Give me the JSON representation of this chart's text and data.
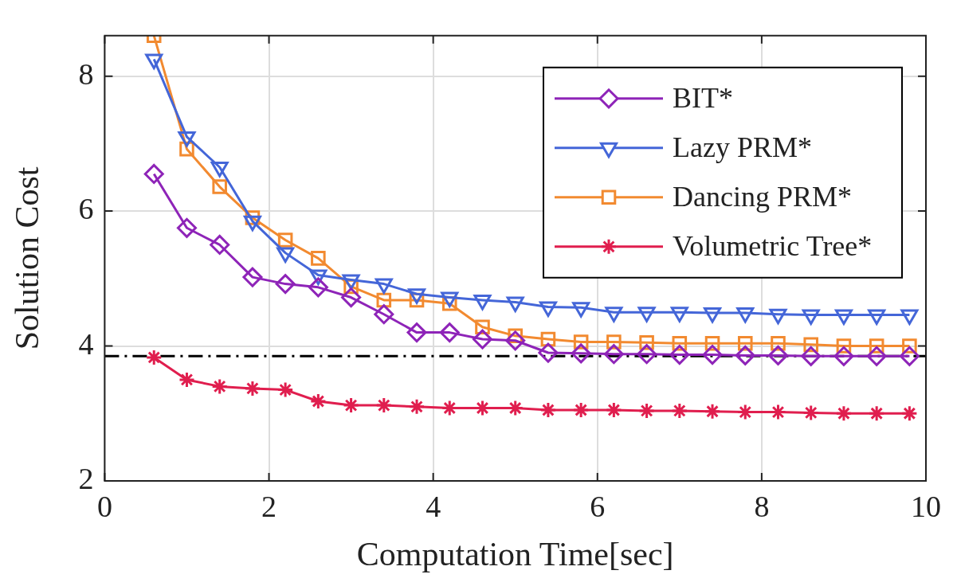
{
  "chart_data": {
    "type": "line",
    "xlabel": "Computation Time[sec]",
    "ylabel": "Solution Cost",
    "x": [
      0.6,
      1.0,
      1.4,
      1.8,
      2.2,
      2.6,
      3.0,
      3.4,
      3.8,
      4.2,
      4.6,
      5.0,
      5.4,
      5.8,
      6.2,
      6.6,
      7.0,
      7.4,
      7.8,
      8.2,
      8.6,
      9.0,
      9.4,
      9.8
    ],
    "series": [
      {
        "name": "BIT*",
        "color": "#8e24b8",
        "marker": "diamond",
        "values": [
          6.55,
          5.75,
          5.5,
          5.02,
          4.92,
          4.87,
          4.72,
          4.47,
          4.2,
          4.2,
          4.1,
          4.08,
          3.9,
          3.89,
          3.88,
          3.88,
          3.87,
          3.87,
          3.86,
          3.86,
          3.85,
          3.85,
          3.85,
          3.85
        ]
      },
      {
        "name": "Lazy PRM*",
        "color": "#4466d8",
        "marker": "triangle",
        "values": [
          8.25,
          7.1,
          6.65,
          5.85,
          5.38,
          5.05,
          4.98,
          4.92,
          4.77,
          4.72,
          4.68,
          4.65,
          4.58,
          4.57,
          4.5,
          4.5,
          4.5,
          4.49,
          4.49,
          4.47,
          4.46,
          4.46,
          4.46,
          4.46
        ]
      },
      {
        "name": "Dancing PRM*",
        "color": "#f28a30",
        "marker": "square",
        "values": [
          8.6,
          6.92,
          6.36,
          5.9,
          5.57,
          5.3,
          4.88,
          4.68,
          4.68,
          4.63,
          4.28,
          4.15,
          4.1,
          4.06,
          4.06,
          4.05,
          4.04,
          4.04,
          4.04,
          4.04,
          4.02,
          4.0,
          4.0,
          4.0
        ]
      },
      {
        "name": "Volumetric Tree*",
        "color": "#e01e4e",
        "marker": "cross",
        "values": [
          3.83,
          3.5,
          3.4,
          3.37,
          3.35,
          3.18,
          3.12,
          3.12,
          3.1,
          3.08,
          3.08,
          3.08,
          3.05,
          3.05,
          3.05,
          3.04,
          3.04,
          3.03,
          3.02,
          3.02,
          3.01,
          3.0,
          3.0,
          3.0
        ]
      }
    ],
    "ref_lines": [
      {
        "axis": "y",
        "value": 3.85,
        "color": "#000000",
        "line_style": "dashdot"
      }
    ],
    "xlim": [
      0,
      10
    ],
    "xticks": [
      0,
      2,
      4,
      6,
      8,
      10
    ],
    "ylim": [
      2,
      8.6
    ],
    "yticks": [
      2,
      4,
      6,
      8
    ],
    "grid": true,
    "legend": "top right",
    "line_style": "solid"
  }
}
